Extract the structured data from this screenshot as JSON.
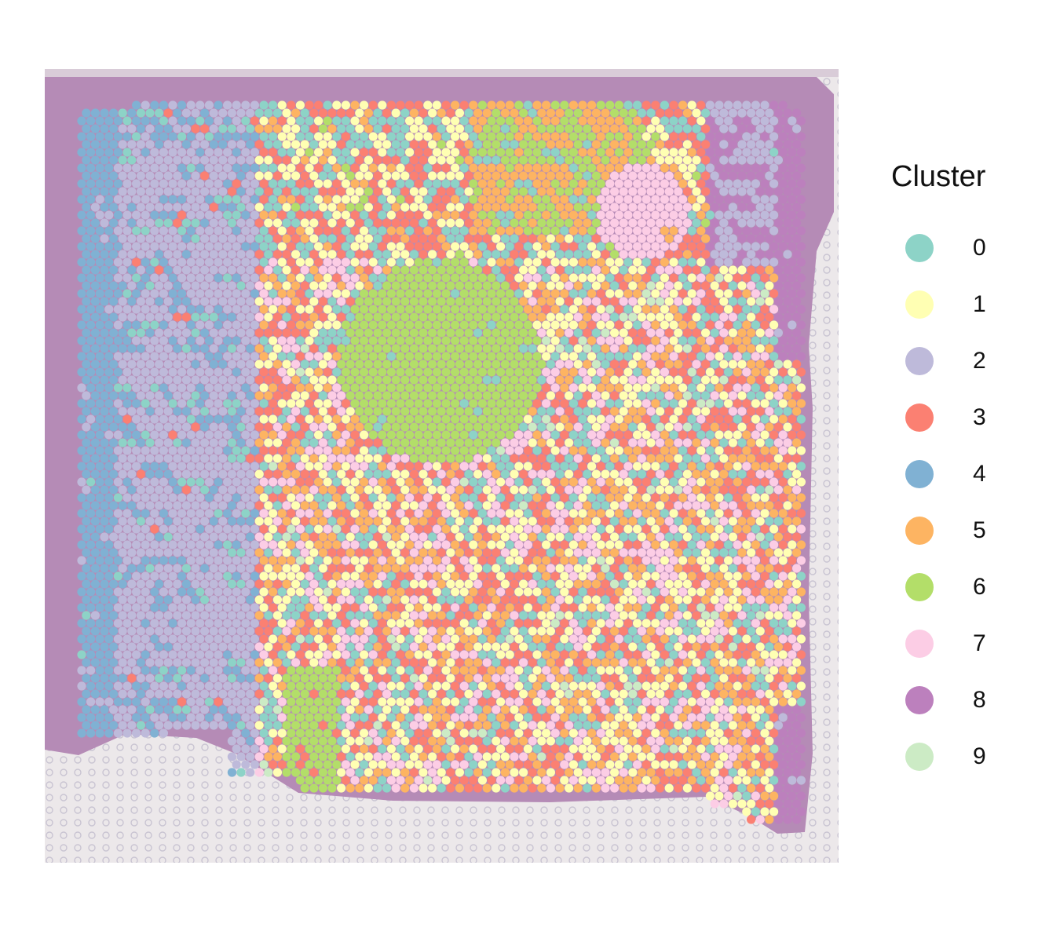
{
  "chart_data": {
    "type": "scatter",
    "subtype": "spatial-transcriptomics-spot-plot",
    "title": "",
    "xlabel": "",
    "ylabel": "",
    "background": "H&E tissue image",
    "legend": {
      "title": "Cluster",
      "placement": "right",
      "entries": [
        {
          "label": "0",
          "color": "#8DD3C7"
        },
        {
          "label": "1",
          "color": "#FFFFB3"
        },
        {
          "label": "2",
          "color": "#BEBADA"
        },
        {
          "label": "3",
          "color": "#FB8072"
        },
        {
          "label": "4",
          "color": "#80B1D3"
        },
        {
          "label": "5",
          "color": "#FDB462"
        },
        {
          "label": "6",
          "color": "#B3DE69"
        },
        {
          "label": "7",
          "color": "#FCCDE5"
        },
        {
          "label": "8",
          "color": "#BC80BD"
        },
        {
          "label": "9",
          "color": "#CCEBC5"
        }
      ]
    },
    "regions": [
      {
        "cluster": "4",
        "area": "left edge"
      },
      {
        "cluster": "2",
        "area": "left-center"
      },
      {
        "cluster": "8",
        "area": "right edge"
      },
      {
        "cluster": "6",
        "area": "center and bottom-left"
      },
      {
        "cluster": "1",
        "area": "mixed center-right"
      },
      {
        "cluster": "7",
        "area": "patches"
      },
      {
        "cluster": "5",
        "area": "top-center"
      }
    ]
  },
  "colors": {
    "tissue": "#B58BB6",
    "tissue_dark": "#9E6FA3",
    "glass": "#ECE8EA",
    "empty_spot": "#C9C4D2"
  }
}
